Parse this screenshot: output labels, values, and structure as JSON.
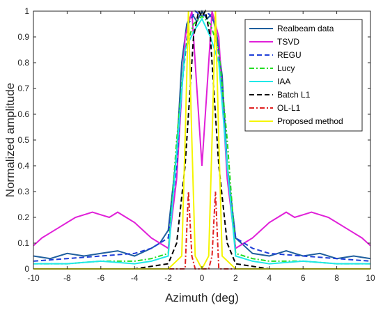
{
  "chart_data": {
    "type": "line",
    "title": "",
    "xlabel": "Azimuth (deg)",
    "ylabel": "Normalized amplitude",
    "xlim": [
      -10,
      10
    ],
    "ylim": [
      0,
      1
    ],
    "xticks": [
      "-10",
      "-8",
      "-6",
      "-4",
      "-2",
      "0",
      "2",
      "4",
      "6",
      "8",
      "10"
    ],
    "yticks": [
      "0",
      "0.1",
      "0.2",
      "0.3",
      "0.4",
      "0.5",
      "0.6",
      "0.7",
      "0.8",
      "0.9",
      "1"
    ],
    "grid": false,
    "legend_position": "top-right",
    "series": [
      {
        "name": "Realbeam data",
        "color": "#1f5f9e",
        "style": "solid",
        "x": [
          -10,
          -9,
          -8,
          -7,
          -6,
          -5,
          -4,
          -3,
          -2.5,
          -2,
          -1.5,
          -1.2,
          -0.9,
          -0.6,
          -0.3,
          0,
          0.3,
          0.6,
          0.9,
          1.2,
          1.5,
          2,
          2.5,
          3,
          4,
          5,
          6,
          7,
          8,
          9,
          10
        ],
        "y": [
          0.05,
          0.04,
          0.06,
          0.05,
          0.06,
          0.07,
          0.05,
          0.08,
          0.1,
          0.15,
          0.45,
          0.8,
          0.95,
          0.99,
          0.96,
          1.0,
          0.97,
          0.99,
          0.9,
          0.75,
          0.4,
          0.12,
          0.09,
          0.06,
          0.05,
          0.07,
          0.05,
          0.06,
          0.04,
          0.05,
          0.04
        ]
      },
      {
        "name": "TSVD",
        "color": "#e020d8",
        "style": "solid",
        "x": [
          -10,
          -9.5,
          -9,
          -8.5,
          -8,
          -7.5,
          -7,
          -6.5,
          -6,
          -5.5,
          -5,
          -4.5,
          -4,
          -3.5,
          -3,
          -2.5,
          -2,
          -1.5,
          -1,
          -0.6,
          -0.3,
          0,
          0.3,
          0.6,
          1,
          1.5,
          2,
          2.5,
          3,
          3.5,
          4,
          4.5,
          5,
          5.5,
          6,
          6.5,
          7,
          7.5,
          8,
          8.5,
          9,
          9.5,
          10
        ],
        "y": [
          0.09,
          0.12,
          0.14,
          0.16,
          0.18,
          0.2,
          0.21,
          0.22,
          0.21,
          0.2,
          0.22,
          0.2,
          0.18,
          0.15,
          0.12,
          0.1,
          0.08,
          0.35,
          0.9,
          1.0,
          0.7,
          0.4,
          0.7,
          1.0,
          0.9,
          0.35,
          0.08,
          0.1,
          0.12,
          0.15,
          0.18,
          0.2,
          0.22,
          0.2,
          0.21,
          0.22,
          0.21,
          0.2,
          0.18,
          0.16,
          0.14,
          0.12,
          0.09
        ]
      },
      {
        "name": "REGU",
        "color": "#1f3fd8",
        "style": "dashed",
        "x": [
          -10,
          -8,
          -6,
          -4,
          -3,
          -2.5,
          -2,
          -1.5,
          -1.2,
          -0.8,
          -0.4,
          0,
          0.4,
          0.8,
          1.2,
          1.5,
          2,
          2.5,
          3,
          4,
          6,
          8,
          10
        ],
        "y": [
          0.03,
          0.04,
          0.05,
          0.06,
          0.08,
          0.1,
          0.12,
          0.4,
          0.7,
          0.95,
          1.0,
          0.98,
          0.99,
          0.95,
          0.7,
          0.4,
          0.12,
          0.1,
          0.08,
          0.06,
          0.05,
          0.04,
          0.03
        ]
      },
      {
        "name": "Lucy",
        "color": "#22dd22",
        "style": "dashdot",
        "x": [
          -10,
          -8,
          -6,
          -4,
          -3,
          -2,
          -1.5,
          -1,
          -0.5,
          0,
          0.5,
          1,
          1.5,
          2,
          3,
          4,
          6,
          8,
          10
        ],
        "y": [
          0.02,
          0.02,
          0.03,
          0.03,
          0.04,
          0.06,
          0.5,
          0.85,
          0.95,
          0.98,
          0.95,
          0.85,
          0.5,
          0.06,
          0.04,
          0.03,
          0.03,
          0.02,
          0.02
        ]
      },
      {
        "name": "IAA",
        "color": "#20e8e8",
        "style": "solid",
        "x": [
          -10,
          -8,
          -6,
          -4,
          -3,
          -2,
          -1.5,
          -1,
          -0.5,
          0,
          0.5,
          1,
          1.5,
          2,
          3,
          4,
          6,
          8,
          10
        ],
        "y": [
          0.02,
          0.02,
          0.03,
          0.02,
          0.03,
          0.05,
          0.45,
          0.85,
          0.92,
          0.97,
          0.9,
          0.8,
          0.4,
          0.05,
          0.03,
          0.02,
          0.03,
          0.02,
          0.02
        ]
      },
      {
        "name": "Batch L1",
        "color": "#000000",
        "style": "dashed",
        "x": [
          -10,
          -4,
          -2,
          -1.5,
          -1,
          -0.5,
          -0.2,
          0,
          0.2,
          0.5,
          1,
          1.5,
          2,
          4,
          10
        ],
        "y": [
          0,
          0,
          0.02,
          0.1,
          0.4,
          0.9,
          1.0,
          0.98,
          1.0,
          0.9,
          0.4,
          0.1,
          0.02,
          0,
          0
        ]
      },
      {
        "name": "OL-L1",
        "color": "#e02020",
        "style": "dashdot",
        "x": [
          -10,
          -2,
          -1,
          -0.8,
          -0.6,
          -0.4,
          0,
          0.4,
          0.6,
          0.8,
          1,
          2,
          10
        ],
        "y": [
          0,
          0,
          0,
          0.3,
          0.05,
          0,
          0,
          0,
          0.05,
          0.3,
          0,
          0,
          0
        ]
      },
      {
        "name": "Proposed method",
        "color": "#f5f500",
        "style": "solid",
        "x": [
          -10,
          -2,
          -1.2,
          -1,
          -0.8,
          -0.6,
          -0.4,
          0,
          0.4,
          0.6,
          0.8,
          1,
          1.2,
          2,
          10
        ],
        "y": [
          0,
          0,
          0.05,
          0.5,
          1.0,
          0.5,
          0.05,
          0,
          0.05,
          0.5,
          1.0,
          0.5,
          0.05,
          0,
          0
        ]
      }
    ]
  }
}
